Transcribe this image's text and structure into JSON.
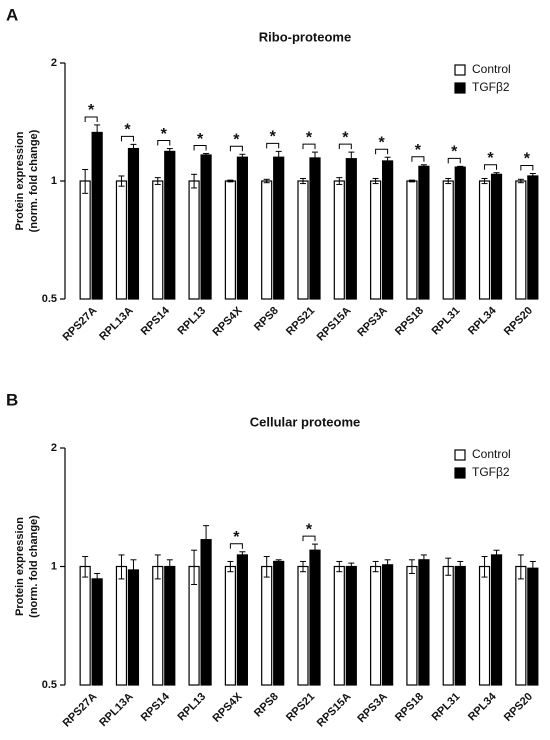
{
  "chart_data": [
    {
      "type": "bar",
      "panel_label": "A",
      "title": "Ribo-proteome",
      "ylabel": [
        "Protein expression",
        "(norm. fold change)"
      ],
      "categories": [
        "RPS27A",
        "RPL13A",
        "RPS14",
        "RPL13",
        "RPS4X",
        "RPS8",
        "RPS21",
        "RPS15A",
        "RPS3A",
        "RPS18",
        "RPL31",
        "RPL34",
        "RPS20"
      ],
      "series": [
        {
          "name": "Control",
          "color": "#ffffff",
          "values": [
            1,
            1,
            1,
            1,
            1,
            1,
            1,
            1,
            1,
            1,
            1,
            1,
            1
          ],
          "errors": [
            0.07,
            0.03,
            0.02,
            0.04,
            0.005,
            0.01,
            0.015,
            0.02,
            0.015,
            0.005,
            0.015,
            0.015,
            0.01
          ]
        },
        {
          "name": "TGFβ2",
          "color": "#000000",
          "values": [
            1.33,
            1.21,
            1.19,
            1.165,
            1.15,
            1.15,
            1.145,
            1.14,
            1.125,
            1.09,
            1.085,
            1.04,
            1.03
          ],
          "errors": [
            0.06,
            0.03,
            0.02,
            0.01,
            0.02,
            0.04,
            0.04,
            0.045,
            0.025,
            0.01,
            0.005,
            0.01,
            0.015
          ]
        }
      ],
      "significance": [
        "*",
        "*",
        "*",
        "*",
        "*",
        "*",
        "*",
        "*",
        "*",
        "*",
        "*",
        "*",
        "*"
      ],
      "yscale": "log",
      "ylim": [
        0.5,
        2
      ],
      "yticks": [
        0.5,
        1,
        2
      ],
      "legend": "upper right"
    },
    {
      "type": "bar",
      "panel_label": "B",
      "title": "Cellular proteome",
      "ylabel": [
        "Protein expression",
        "(norm. fold change)"
      ],
      "categories": [
        "RPS27A",
        "RPL13A",
        "RPS14",
        "RPL13",
        "RPS4X",
        "RPS8",
        "RPS21",
        "RPS15A",
        "RPS3A",
        "RPS18",
        "RPL31",
        "RPL34",
        "RPS20"
      ],
      "series": [
        {
          "name": "Control",
          "color": "#ffffff",
          "values": [
            1,
            1,
            1,
            1,
            1,
            1,
            1,
            1,
            1,
            1,
            1,
            1,
            1
          ],
          "errors": [
            0.06,
            0.07,
            0.07,
            0.1,
            0.03,
            0.06,
            0.03,
            0.03,
            0.03,
            0.04,
            0.05,
            0.06,
            0.07
          ]
        },
        {
          "name": "TGFβ2",
          "color": "#000000",
          "values": [
            0.93,
            0.98,
            1.0,
            1.17,
            1.07,
            1.03,
            1.1,
            1.0,
            1.01,
            1.04,
            1.0,
            1.07,
            0.99
          ],
          "errors": [
            0.03,
            0.06,
            0.04,
            0.1,
            0.02,
            0.01,
            0.04,
            0.02,
            0.03,
            0.03,
            0.03,
            0.03,
            0.04
          ]
        }
      ],
      "significance": [
        null,
        null,
        null,
        null,
        "*",
        null,
        "*",
        null,
        null,
        null,
        null,
        null,
        null
      ],
      "yscale": "log",
      "ylim": [
        0.5,
        2
      ],
      "yticks": [
        0.5,
        1,
        2
      ],
      "legend": "upper right"
    }
  ]
}
